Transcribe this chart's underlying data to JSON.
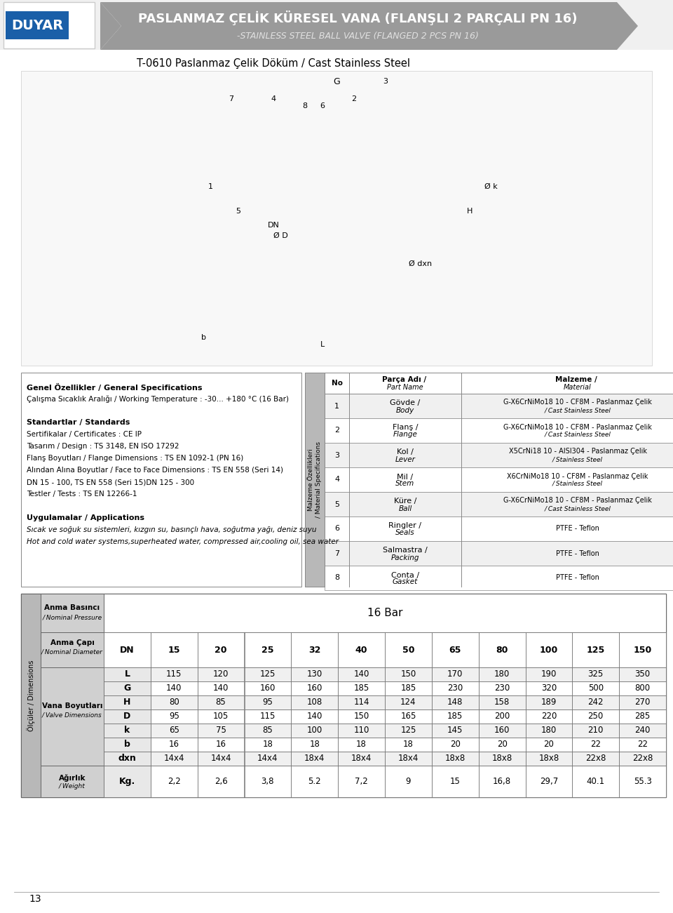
{
  "title_main": "PASLANMAZ ÇELİK KÜRESEL VANA (FLANŞLI 2 PARÇALI PN 16)",
  "title_sub": "-STAINLESS STEEL BALL VALVE (FLANGED 2 PCS PN 16)",
  "subtitle2": "T-0610 Paslanmaz Çelik Döküm / Cast Stainless Steel",
  "brand": "DUYAR",
  "header_bg": "#a0a0a0",
  "header_text_color": "#ffffff",
  "general_specs_title": "Genel Özellikler / General Specifications",
  "general_specs": [
    "Çalışma Sıcaklık Aralığı / Working Temperature : -30... +180 °C (16 Bar)",
    "",
    "Standartlar / Standards",
    "Sertifikalar / Certificates : CE IP",
    "Tasarım / Design : TS 3148, EN ISO 17292",
    "Flanş Boyutları / Flange Dimensions : TS EN 1092-1 (PN 16)",
    "Alından Alına Boyutlar / Face to Face Dimensions : TS EN 558 (Seri 14)",
    "DN 15 - 100, TS EN 558 (Seri 15)DN 125 - 300",
    "Testler / Tests : TS EN 12266-1",
    "",
    "Uygulamalar / Applications",
    "Sıcak ve soğuk su sistemleri, kızgın su, basınçlı hava, soğutma yağı, deniz suyu",
    "Hot and cold water systems,superheated water, compressed air,cooling oil, sea water"
  ],
  "parts_table_header": [
    "No",
    "Parça Adı / Part Name",
    "Malzeme / Material"
  ],
  "parts_table": [
    [
      "1",
      "Gövde / Body",
      "G-X6CrNiMo18 10 - CF8M - Paslanmaz Çelik\n/ Cast Stainless Steel"
    ],
    [
      "2",
      "Flanş / Flange",
      "G-X6CrNiMo18 10 - CF8M - Paslanmaz Çelik\n/ Cast Stainless Steel"
    ],
    [
      "3",
      "Kol / Lever",
      "X5CrNi18 10 - AISI304 - Paslanmaz Çelik\n/ Stainless Steel"
    ],
    [
      "4",
      "Mil / Stem",
      "X6CrNiMo18 10 - CF8M - Paslanmaz Çelik\n/ Stainless Steel"
    ],
    [
      "5",
      "Küre / Ball",
      "G-X6CrNiMo18 10 - CF8M - Paslanmaz Çelik\n/ Cast Stainless Steel"
    ],
    [
      "6",
      "Ringler / Seals",
      "PTFE - Teflon"
    ],
    [
      "7",
      "Salmastra / Packing",
      "PTFE - Teflon"
    ],
    [
      "8",
      "Conta / Gasket",
      "PTFE - Teflon"
    ]
  ],
  "dim_table_nominal_pressure": "16 Bar",
  "dim_table_label1": "Anma Basıncı\n/ Nominal Pressure",
  "dim_table_label2": "Anma Çapı\n/ Nominal Diameter",
  "dim_table_label3": "Vana Boyutları\n/ Valve Dimensions",
  "dim_table_label4": "Ağırlık\n/ Weight",
  "dim_table_label_olcular": "Ölçüler / Dimensions",
  "dn_values": [
    "DN",
    "15",
    "20",
    "25",
    "32",
    "40",
    "50",
    "65",
    "80",
    "100",
    "125",
    "150"
  ],
  "dim_rows": {
    "L": [
      "L",
      "115",
      "120",
      "125",
      "130",
      "140",
      "150",
      "170",
      "180",
      "190",
      "325",
      "350"
    ],
    "G": [
      "G",
      "140",
      "140",
      "160",
      "160",
      "185",
      "185",
      "230",
      "230",
      "320",
      "500",
      "800"
    ],
    "H": [
      "H",
      "80",
      "85",
      "95",
      "108",
      "114",
      "124",
      "148",
      "158",
      "189",
      "242",
      "270"
    ],
    "D": [
      "D",
      "95",
      "105",
      "115",
      "140",
      "150",
      "165",
      "185",
      "200",
      "220",
      "250",
      "285"
    ],
    "k": [
      "k",
      "65",
      "75",
      "85",
      "100",
      "110",
      "125",
      "145",
      "160",
      "180",
      "210",
      "240"
    ],
    "b": [
      "b",
      "16",
      "16",
      "18",
      "18",
      "18",
      "18",
      "20",
      "20",
      "20",
      "22",
      "22"
    ],
    "dxn": [
      "dxn",
      "14x4",
      "14x4",
      "14x4",
      "18x4",
      "18x4",
      "18x4",
      "18x8",
      "18x8",
      "18x8",
      "22x8",
      "22x8"
    ]
  },
  "weight_row": [
    "Kg.",
    "2,2",
    "2,6",
    "3,8",
    "5.2",
    "7,2",
    "9",
    "15",
    "16,8",
    "29,7",
    "40.1",
    "55.3"
  ],
  "bg_color": "#ffffff",
  "table_border_color": "#555555",
  "table_header_bg": "#d0d0d0",
  "row_alt_bg": "#f0f0f0",
  "left_panel_bg": "#c8c8c8",
  "sidebar_bg": "#b0b0b0"
}
